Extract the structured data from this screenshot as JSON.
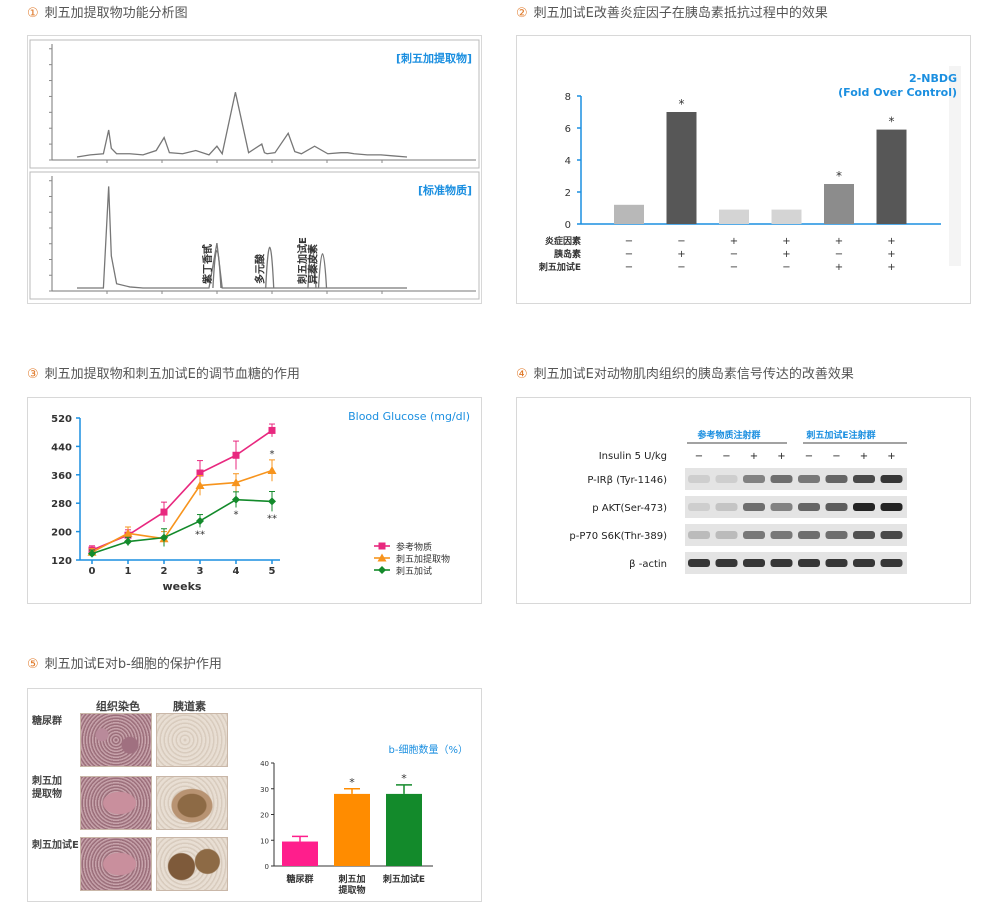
{
  "sections": [
    {
      "num": "①",
      "title": "刺五加提取物功能分析图"
    },
    {
      "num": "②",
      "title": "刺五加试E改善炎症因子在胰岛素抵抗过程中的效果"
    },
    {
      "num": "③",
      "title": "刺五加提取物和刺五加试E的调节血糖的作用"
    },
    {
      "num": "④",
      "title": "刺五加试E对动物肌肉组织的胰岛素信号传达的改善效果"
    },
    {
      "num": "⑤",
      "title": "刺五加试E对b-细胞的保护作用"
    }
  ],
  "chart_data": [
    {
      "id": "chromatogram",
      "type": "line",
      "panels": [
        {
          "label": "[刺五加提取物]",
          "x": [
            0,
            1,
            2,
            2.4,
            2.6,
            3,
            4,
            5,
            6,
            6.6,
            7,
            8,
            9,
            10,
            10.6,
            11,
            12,
            13,
            14,
            14.2,
            14.4,
            15,
            16,
            16.5,
            17,
            18,
            19,
            20,
            20.5,
            21,
            22,
            23,
            24,
            25
          ],
          "y": [
            0,
            2,
            3,
            25,
            8,
            3,
            3,
            2,
            6,
            18,
            4,
            3,
            6,
            2,
            10,
            3,
            60,
            4,
            12,
            4,
            3,
            4,
            22,
            5,
            3,
            10,
            3,
            4,
            4,
            3,
            2,
            2,
            1,
            0
          ]
        },
        {
          "label": "[标准物质]",
          "x": [
            0,
            1,
            2,
            2.4,
            2.6,
            3,
            4,
            5,
            6,
            7,
            8,
            9,
            10,
            10.6,
            11,
            12,
            13,
            14,
            15,
            16,
            16.4,
            17,
            18,
            19,
            20,
            21,
            22,
            23,
            24,
            25
          ],
          "y": [
            0,
            0,
            0,
            95,
            30,
            4,
            1,
            0,
            0,
            0,
            0,
            0,
            0,
            42,
            0,
            0,
            0,
            0,
            0,
            0,
            0,
            0,
            0,
            0,
            0,
            0,
            0,
            0,
            0,
            0
          ],
          "peaks": [
            {
              "name": "紫丁香甙",
              "x": 10.6,
              "y": 42
            },
            {
              "name": "多元酸",
              "x": 14.6,
              "y": 48
            },
            {
              "name": "刺五加试E",
              "x": 17.8,
              "y": 46
            },
            {
              "name": "异秦皮素",
              "x": 18.6,
              "y": 36
            }
          ]
        }
      ]
    },
    {
      "id": "nbdg",
      "type": "bar",
      "title": "2-NBDG",
      "subtitle": "(Fold Over Control)",
      "ylim": [
        0,
        8
      ],
      "yticks": [
        0,
        2,
        4,
        6,
        8
      ],
      "values": [
        1.2,
        7.0,
        0.9,
        0.9,
        2.5,
        5.9
      ],
      "colors": [
        "#b8b8b8",
        "#575757",
        "#d4d4d4",
        "#d4d4d4",
        "#8c8c8c",
        "#575757"
      ],
      "sig": [
        "",
        "*",
        "",
        "",
        "*",
        "*"
      ],
      "rows": [
        {
          "label": "炎症因素",
          "marks": [
            "−",
            "−",
            "+",
            "+",
            "+",
            "+"
          ]
        },
        {
          "label": "胰岛素",
          "marks": [
            "−",
            "+",
            "−",
            "+",
            "−",
            "+"
          ]
        },
        {
          "label": "刺五加试E",
          "marks": [
            "−",
            "−",
            "−",
            "−",
            "+",
            "+"
          ]
        }
      ]
    },
    {
      "id": "glucose",
      "type": "line",
      "title": "Blood Glucose (mg/dl)",
      "xlabel": "weeks",
      "x": [
        0,
        1,
        2,
        3,
        4,
        5
      ],
      "ylim": [
        120,
        520
      ],
      "yticks": [
        120,
        200,
        280,
        360,
        440,
        520
      ],
      "series": [
        {
          "name": "参考物质",
          "color": "#e8287f",
          "marker": "square",
          "values": [
            148,
            190,
            255,
            365,
            415,
            485
          ],
          "err": [
            12,
            15,
            28,
            35,
            40,
            18
          ],
          "sig": [
            "",
            "",
            "",
            "",
            "",
            ""
          ]
        },
        {
          "name": "刺五加提取物",
          "color": "#f7941d",
          "marker": "triangle",
          "values": [
            142,
            195,
            180,
            330,
            338,
            372
          ],
          "err": [
            10,
            18,
            20,
            28,
            25,
            30
          ],
          "sig": [
            "",
            "",
            "",
            "",
            "",
            "*"
          ]
        },
        {
          "name": "刺五加试",
          "color": "#138a2b",
          "marker": "diamond",
          "values": [
            138,
            172,
            183,
            230,
            290,
            285
          ],
          "err": [
            10,
            12,
            25,
            18,
            22,
            28
          ],
          "sig": [
            "",
            "",
            "",
            "**",
            "*",
            "**"
          ]
        }
      ]
    },
    {
      "id": "western",
      "type": "table",
      "groups": [
        "参考物质注射群",
        "刺五加试E注射群"
      ],
      "insulin_label": "Insulin 5 U/kg",
      "insulin_marks": [
        "−",
        "−",
        "+",
        "+",
        "−",
        "−",
        "+",
        "+"
      ],
      "bands": [
        {
          "label": "P-IRβ (Tyr-1146)",
          "intensity": [
            0.05,
            0.05,
            0.45,
            0.55,
            0.5,
            0.6,
            0.75,
            0.85
          ]
        },
        {
          "label": "p AKT(Ser-473)",
          "intensity": [
            0.05,
            0.1,
            0.55,
            0.45,
            0.6,
            0.65,
            0.95,
            0.95
          ]
        },
        {
          "label": "p-P70 S6K(Thr-389)",
          "intensity": [
            0.15,
            0.15,
            0.5,
            0.5,
            0.55,
            0.55,
            0.7,
            0.75
          ]
        },
        {
          "label": "β -actin",
          "intensity": [
            0.85,
            0.85,
            0.85,
            0.85,
            0.85,
            0.85,
            0.85,
            0.85
          ]
        }
      ]
    },
    {
      "id": "betacell",
      "type": "bar",
      "title": "b-细胞数量（%）",
      "categories": [
        "糖尿群",
        "刺五加\n提取物",
        "刺五加试E"
      ],
      "values": [
        9.5,
        28,
        28
      ],
      "err": [
        2,
        2,
        3.5
      ],
      "colors": [
        "#ff1e8c",
        "#ff8c00",
        "#138a2b"
      ],
      "sig": [
        "",
        "*",
        "*"
      ],
      "ylim": [
        0,
        40
      ],
      "yticks": [
        0,
        10,
        20,
        30,
        40
      ]
    }
  ],
  "histology": {
    "col_headers": [
      "组织染色",
      "胰道素"
    ],
    "row_labels": [
      "糖尿群",
      "刺五加\n提取物",
      "刺五加试E"
    ]
  }
}
